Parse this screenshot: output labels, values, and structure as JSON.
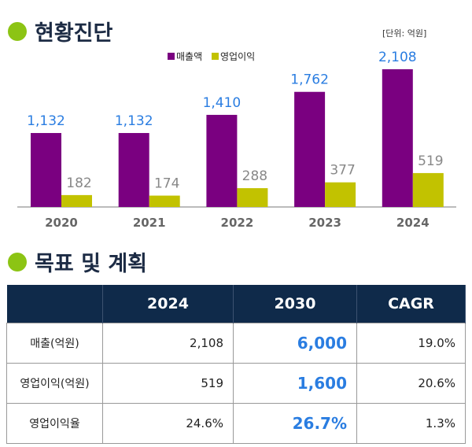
{
  "section1": {
    "title": "현황진단",
    "unit": "[단위: 억원]"
  },
  "section2": {
    "title": "목표 및 계획"
  },
  "chart_data": {
    "type": "bar",
    "categories": [
      "2020",
      "2021",
      "2022",
      "2023",
      "2024"
    ],
    "series": [
      {
        "name": "매출액",
        "color": "#7a0080",
        "label_color": "#2a7de1",
        "values": [
          1132,
          1132,
          1410,
          1762,
          2108
        ],
        "labels": [
          "1,132",
          "1,132",
          "1,410",
          "1,762",
          "2,108"
        ]
      },
      {
        "name": "영업이익",
        "color": "#c2c200",
        "label_color": "#888888",
        "values": [
          182,
          174,
          288,
          377,
          519
        ],
        "labels": [
          "182",
          "174",
          "288",
          "377",
          "519"
        ]
      }
    ],
    "ylim": [
      0,
      2108
    ],
    "legend": "top-center",
    "grid": false
  },
  "table": {
    "headers": [
      "",
      "2024",
      "2030",
      "CAGR"
    ],
    "rows": [
      {
        "label": "매출(억원)",
        "v2024": "2,108",
        "v2030": "6,000",
        "cagr": "19.0%"
      },
      {
        "label": "영업이익(억원)",
        "v2024": "519",
        "v2030": "1,600",
        "cagr": "20.6%"
      },
      {
        "label": "영업이익율",
        "v2024": "24.6%",
        "v2030": "26.7%",
        "cagr": "1.3%"
      }
    ]
  }
}
